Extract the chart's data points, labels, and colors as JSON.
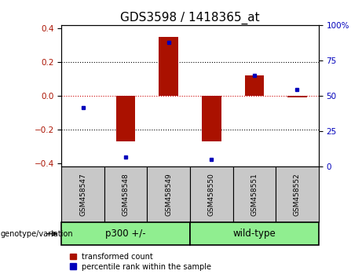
{
  "title": "GDS3598 / 1418365_at",
  "samples": [
    "GSM458547",
    "GSM458548",
    "GSM458549",
    "GSM458550",
    "GSM458551",
    "GSM458552"
  ],
  "transformed_count": [
    0.0,
    -0.27,
    0.35,
    -0.27,
    0.12,
    -0.01
  ],
  "percentile_rank_scaled": [
    -0.07,
    -0.36,
    0.315,
    -0.375,
    0.12,
    0.04
  ],
  "group_boundaries": [
    3
  ],
  "group_labels": [
    "p300 +/-",
    "wild-type"
  ],
  "group_label_text": "genotype/variation",
  "ylim": [
    -0.42,
    0.42
  ],
  "yticks_left": [
    -0.4,
    -0.2,
    0.0,
    0.2,
    0.4
  ],
  "yticks_right_pct": [
    0,
    25,
    50,
    75,
    100
  ],
  "bar_color": "#AA1100",
  "dot_color": "#0000BB",
  "hline_color": "#CC0000",
  "grid_color": "#000000",
  "bg_color": "#FFFFFF",
  "label_bg": "#C8C8C8",
  "group_color": "#90EE90",
  "bar_width": 0.45,
  "title_fontsize": 11,
  "tick_fontsize": 7.5,
  "label_fontsize": 6.5,
  "legend_fontsize": 7
}
